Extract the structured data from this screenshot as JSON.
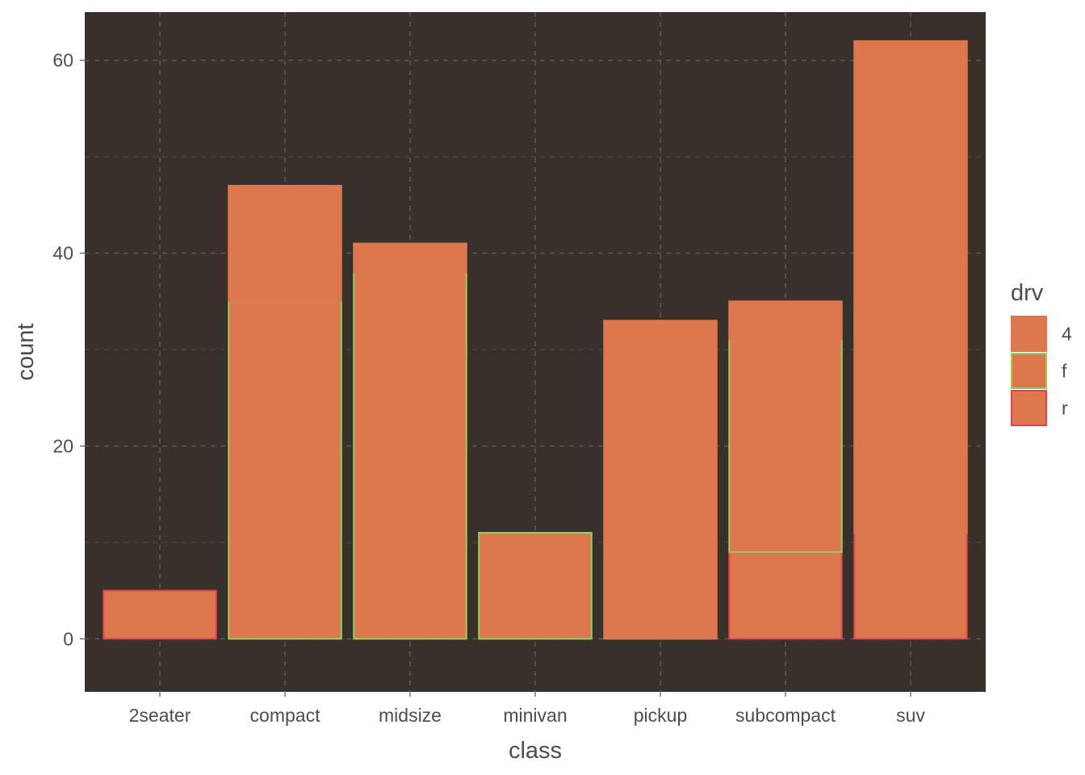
{
  "chart_data": {
    "type": "bar",
    "stacked": true,
    "xlabel": "class",
    "ylabel": "count",
    "categories": [
      "2seater",
      "compact",
      "midsize",
      "minivan",
      "pickup",
      "subcompact",
      "suv"
    ],
    "series": [
      {
        "name": "4",
        "values": [
          0,
          12,
          3,
          0,
          33,
          4,
          51
        ]
      },
      {
        "name": "f",
        "values": [
          0,
          35,
          38,
          11,
          0,
          22,
          0
        ]
      },
      {
        "name": "r",
        "values": [
          5,
          0,
          0,
          0,
          0,
          9,
          11
        ]
      }
    ],
    "stack_order_bottom_to_top": [
      "r",
      "f",
      "4"
    ],
    "ylim": [
      -5.5,
      65
    ],
    "yticks": [
      0,
      20,
      40,
      60
    ],
    "legend": {
      "title": "drv",
      "position": "right"
    },
    "colors": {
      "panel_background": "#37302B",
      "bar_fill": "#DC774E",
      "grid": "#5E5650",
      "outline_4": "#DC774E",
      "outline_f": "#9ACD5A",
      "outline_r": "#E0444E",
      "text": "#4D4D4D"
    },
    "grid": true
  }
}
